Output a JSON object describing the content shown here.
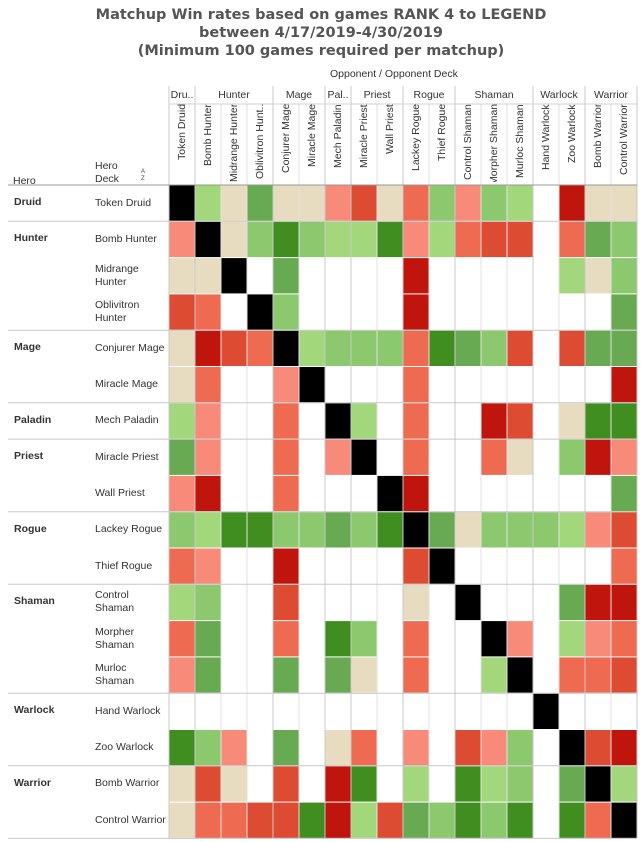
{
  "title": {
    "line1": "Matchup Win rates based on games RANK 4 to LEGEND",
    "line2": "between 4/17/2019-4/30/2019",
    "line3": "(Minimum 100 games required per matchup)"
  },
  "header": {
    "opponent_label": "Opponent  /  Opponent Deck",
    "hero_label": "Hero",
    "hero_deck_label": "Hero\nDeck",
    "sort_icon": "sort-ascending-icon"
  },
  "colors": {
    "black": "#000000",
    "dark_red": "#c0150c",
    "red": "#dd4b32",
    "salmon": "#ee6a50",
    "light_salmon": "#f78a78",
    "beige": "#e8dcc0",
    "light_green": "#a3d77b",
    "medium_green": "#8cc96e",
    "green": "#68aa52",
    "dark_green": "#3f8e1f",
    "empty": "#ffffff"
  },
  "chart_data": {
    "type": "heatmap",
    "title": "Matchup Win rates based on games RANK 4 to LEGEND between 4/17/2019-4/30/2019 (Minimum 100 games required per matchup)",
    "xlabel": "Opponent  /  Opponent Deck",
    "ylabel": "Hero / Hero Deck",
    "color_scale": "diverging red (low win rate) - beige (even) - green (high win rate); black = mirror; blank = fewer than 100 games",
    "groups": [
      {
        "hero": "Druid",
        "decks": [
          "Token Druid"
        ]
      },
      {
        "hero": "Hunter",
        "decks": [
          "Bomb Hunter",
          "Midrange Hunter",
          "Oblivitron Hunter"
        ]
      },
      {
        "hero": "Mage",
        "decks": [
          "Conjurer Mage",
          "Miracle Mage"
        ]
      },
      {
        "hero": "Paladin",
        "decks": [
          "Mech Paladin"
        ]
      },
      {
        "hero": "Priest",
        "decks": [
          "Miracle Priest",
          "Wall Priest"
        ]
      },
      {
        "hero": "Rogue",
        "decks": [
          "Lackey Rogue",
          "Thief Rogue"
        ]
      },
      {
        "hero": "Shaman",
        "decks": [
          "Control Shaman",
          "Morpher Shaman",
          "Murloc Shaman"
        ]
      },
      {
        "hero": "Warlock",
        "decks": [
          "Hand Warlock",
          "Zoo Warlock"
        ]
      },
      {
        "hero": "Warrior",
        "decks": [
          "Bomb Warrior",
          "Control Warrior"
        ]
      }
    ],
    "column_headers": [
      {
        "hero": "Dru..",
        "decks": [
          "Token Druid"
        ]
      },
      {
        "hero": "Hunter",
        "decks": [
          "Bomb Hunter",
          "Midrange Hunter",
          "Oblivitron Hunt.."
        ]
      },
      {
        "hero": "Mage",
        "decks": [
          "Conjurer Mage",
          "Miracle Mage"
        ]
      },
      {
        "hero": "Pal..",
        "decks": [
          "Mech Paladin"
        ]
      },
      {
        "hero": "Priest",
        "decks": [
          "Miracle Priest",
          "Wall Priest"
        ]
      },
      {
        "hero": "Rogue",
        "decks": [
          "Lackey Rogue",
          "Thief Rogue"
        ]
      },
      {
        "hero": "Shaman",
        "decks": [
          "Control Shaman",
          "Morpher Shaman",
          "Murloc Shaman"
        ]
      },
      {
        "hero": "Warlock",
        "decks": [
          "Hand Warlock",
          "Zoo Warlock"
        ]
      },
      {
        "hero": "Warrior",
        "decks": [
          "Bomb Warrior",
          "Control Warrior"
        ]
      }
    ],
    "row_labels": [
      "Token Druid",
      "Bomb Hunter",
      "Midrange\nHunter",
      "Oblivitron\nHunter",
      "Conjurer Mage",
      "Miracle Mage",
      "Mech Paladin",
      "Miracle Priest",
      "Wall Priest",
      "Lackey Rogue",
      "Thief Rogue",
      "Control\nShaman",
      "Morpher\nShaman",
      "Murloc\nShaman",
      "Hand Warlock",
      "Zoo Warlock",
      "Bomb Warrior",
      "Control Warrior"
    ],
    "cell_levels_legend": "K=mirror, DR=dark red, R=red, S=salmon, LS=light salmon, B=beige, LG=light green, MG=medium green, G=green, DG=dark green, blank=no data",
    "cells": [
      [
        "K",
        "LG",
        "B",
        "G",
        "B",
        "B",
        "LS",
        "R",
        "B",
        "S",
        "MG",
        "LS",
        "MG",
        "LG",
        "",
        "DR",
        "B",
        "B"
      ],
      [
        "LS",
        "K",
        "B",
        "MG",
        "DG",
        "MG",
        "LG",
        "LG",
        "DG",
        "LS",
        "LG",
        "S",
        "R",
        "R",
        "",
        "S",
        "G",
        "MG"
      ],
      [
        "B",
        "B",
        "K",
        "",
        "G",
        "",
        "",
        "",
        "",
        "DR",
        "",
        "",
        "",
        "",
        "",
        "LG",
        "B",
        "MG"
      ],
      [
        "R",
        "S",
        "",
        "K",
        "MG",
        "",
        "",
        "",
        "",
        "DR",
        "",
        "",
        "",
        "",
        "",
        "",
        "",
        "G"
      ],
      [
        "B",
        "DR",
        "R",
        "S",
        "K",
        "LG",
        "MG",
        "MG",
        "MG",
        "S",
        "DG",
        "G",
        "MG",
        "R",
        "",
        "R",
        "G",
        "G"
      ],
      [
        "B",
        "S",
        "",
        "",
        "LS",
        "K",
        "",
        "",
        "",
        "S",
        "",
        "",
        "",
        "",
        "",
        "",
        "",
        "DR"
      ],
      [
        "LG",
        "LS",
        "",
        "",
        "S",
        "",
        "K",
        "LG",
        "",
        "S",
        "",
        "",
        "DR",
        "R",
        "",
        "B",
        "DG",
        "DG"
      ],
      [
        "G",
        "LS",
        "",
        "",
        "S",
        "",
        "LS",
        "K",
        "",
        "S",
        "",
        "",
        "S",
        "B",
        "",
        "MG",
        "DR",
        "LS"
      ],
      [
        "LS",
        "DR",
        "",
        "",
        "S",
        "",
        "",
        "",
        "K",
        "DR",
        "",
        "",
        "",
        "",
        "",
        "",
        "",
        "G"
      ],
      [
        "MG",
        "LG",
        "DG",
        "DG",
        "MG",
        "MG",
        "G",
        "MG",
        "DG",
        "K",
        "G",
        "B",
        "MG",
        "MG",
        "MG",
        "LG",
        "LS",
        "R"
      ],
      [
        "S",
        "LS",
        "",
        "",
        "DR",
        "",
        "",
        "",
        "",
        "R",
        "K",
        "",
        "",
        "",
        "",
        "",
        "",
        "S"
      ],
      [
        "LG",
        "MG",
        "",
        "",
        "R",
        "",
        "",
        "",
        "",
        "B",
        "",
        "K",
        "",
        "",
        "",
        "G",
        "DR",
        "DR"
      ],
      [
        "S",
        "G",
        "",
        "",
        "S",
        "",
        "DG",
        "MG",
        "",
        "S",
        "",
        "",
        "K",
        "LS",
        "",
        "LG",
        "LS",
        "S"
      ],
      [
        "LS",
        "G",
        "",
        "",
        "G",
        "",
        "G",
        "B",
        "",
        "S",
        "",
        "",
        "LG",
        "K",
        "",
        "S",
        "S",
        "R"
      ],
      [
        "",
        "",
        "",
        "",
        "",
        "",
        "",
        "",
        "",
        "",
        "",
        "",
        "",
        "",
        "K",
        "",
        "",
        ""
      ],
      [
        "DG",
        "MG",
        "LS",
        "",
        "G",
        "",
        "B",
        "S",
        "",
        "LS",
        "",
        "R",
        "LS",
        "MG",
        "",
        "K",
        "R",
        "DR"
      ],
      [
        "B",
        "R",
        "B",
        "",
        "R",
        "",
        "DR",
        "DG",
        "",
        "LG",
        "",
        "DG",
        "LG",
        "MG",
        "",
        "G",
        "K",
        "LG"
      ],
      [
        "B",
        "S",
        "S",
        "R",
        "R",
        "DG",
        "DR",
        "LG",
        "R",
        "G",
        "MG",
        "DG",
        "MG",
        "DG",
        "",
        "DG",
        "S",
        "K"
      ]
    ]
  }
}
